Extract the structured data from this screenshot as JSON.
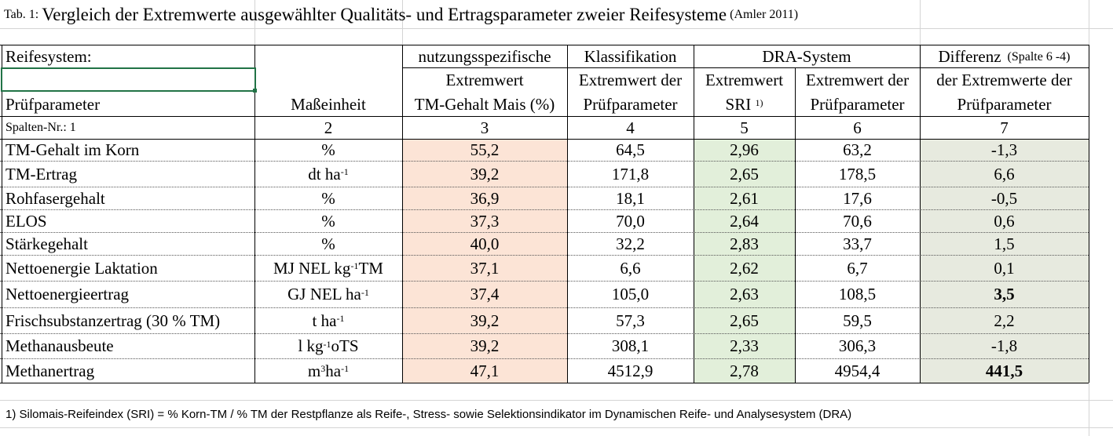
{
  "title": {
    "prefix": "Tab. 1:",
    "main": "Vergleich der Extremwerte ausgewählter Qualitäts- und Ertragsparameter zweier Reifesysteme",
    "source": "(Amler 2011)"
  },
  "header": {
    "reifesystem": "Reifesystem:",
    "nutzungsspezifische": "nutzungsspezifische",
    "klassifikation": "Klassifikation",
    "dra_system": "DRA-System",
    "differenz": "Differenz",
    "differenz_note": "(Spalte 6 -4)",
    "extremwert": "Extremwert",
    "extremwert_der": "Extremwert der",
    "extremwert_dra": "Extremwert",
    "extremwert_der_2": "Extremwert der",
    "der_extremwerte_der": "der Extremwerte der",
    "pruefparameter": "Prüfparameter",
    "masseinheit": "Maßeinheit",
    "tm_gehalt_mais": "TM-Gehalt Mais (%)",
    "pruefparameter_col4": "Prüfparameter",
    "sri": "SRI",
    "sri_sup": "1)",
    "pruefparameter_col6": "Prüfparameter",
    "pruefparameter_col7": "Prüfparameter"
  },
  "col_numbers": {
    "label": "Spalten-Nr.: 1",
    "nums": [
      "2",
      "3",
      "4",
      "5",
      "6",
      "7"
    ]
  },
  "rows": [
    {
      "param": "TM-Gehalt im Korn",
      "unit": "%",
      "c3": "55,2",
      "c4": "64,5",
      "c5": "2,96",
      "c6": "63,2",
      "c7": "-1,3",
      "bold": false
    },
    {
      "param": "TM-Ertrag",
      "unit": "dt ha",
      "unit_sup": "-1",
      "c3": "39,2",
      "c4": "171,8",
      "c5": "2,65",
      "c6": "178,5",
      "c7": "6,6",
      "bold": false
    },
    {
      "param": "Rohfasergehalt",
      "unit": "%",
      "c3": "36,9",
      "c4": "18,1",
      "c5": "2,61",
      "c6": "17,6",
      "c7": "-0,5",
      "bold": false
    },
    {
      "param": "ELOS",
      "unit": "%",
      "c3": "37,3",
      "c4": "70,0",
      "c5": "2,64",
      "c6": "70,6",
      "c7": "0,6",
      "bold": false
    },
    {
      "param": "Stärkegehalt",
      "unit": "%",
      "c3": "40,0",
      "c4": "32,2",
      "c5": "2,83",
      "c6": "33,7",
      "c7": "1,5",
      "bold": false
    },
    {
      "param": "Nettoenergie Laktation",
      "unit": "MJ NEL kg",
      "unit_sup": "-1",
      "unit_tail": " TM",
      "c3": "37,1",
      "c4": "6,6",
      "c5": "2,62",
      "c6": "6,7",
      "c7": "0,1",
      "bold": false
    },
    {
      "param": "Nettoenergieertrag",
      "unit": "GJ NEL ha",
      "unit_sup": "-1",
      "c3": "37,4",
      "c4": "105,0",
      "c5": "2,63",
      "c6": "108,5",
      "c7": "3,5",
      "bold": true
    },
    {
      "param": "Frischsubstanzertrag (30 % TM)",
      "unit": "t ha",
      "unit_sup": "-1",
      "c3": "39,2",
      "c4": "57,3",
      "c5": "2,65",
      "c6": "59,5",
      "c7": "2,2",
      "bold": false
    },
    {
      "param": "Methanausbeute",
      "unit": "l kg",
      "unit_sup": "-1",
      "unit_tail": " oTS",
      "c3": "39,2",
      "c4": "308,1",
      "c5": "2,33",
      "c6": "306,3",
      "c7": "-1,8",
      "bold": false
    },
    {
      "param": "Methanertrag",
      "unit": "m",
      "unit_sup": "3",
      "unit_tail": " ha",
      "unit_sup2": "-1",
      "c3": "47,1",
      "c4": "4512,9",
      "c5": "2,78",
      "c6": "4954,4",
      "c7": "441,5",
      "bold": true
    }
  ],
  "footnote": "1) Silomais-Reifeindex (SRI) = % Korn-TM / % TM der Restpflanze als Reife-, Stress- sowie Selektionsindikator im Dynamischen Reife- und Analysesystem (DRA)",
  "colors": {
    "col3_fill": "#fce4d6",
    "col5_fill": "#e2efda",
    "col7_fill": "#e7eadf",
    "selection": "#217346"
  }
}
